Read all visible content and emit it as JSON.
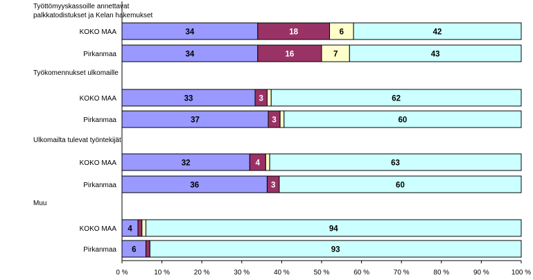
{
  "chart_data": {
    "type": "bar",
    "orientation": "horizontal",
    "stacked": "percent",
    "xlim": [
      0,
      100
    ],
    "x_ticks": [
      "0 %",
      "10 %",
      "20 %",
      "30 %",
      "40 %",
      "50 %",
      "60 %",
      "70 %",
      "80 %",
      "90 %",
      "100 %"
    ],
    "legend": "none",
    "grid": false,
    "colors": [
      "#9999ff",
      "#993366",
      "#ffffcc",
      "#ccffff"
    ],
    "label_colors": [
      "#000000",
      "#ffffff",
      "#000000",
      "#000000"
    ],
    "groups": [
      {
        "title": "Työttömyyskassoille annettavat\npalkkatodistukset ja Kelan hakemukset",
        "rows": [
          {
            "label": "KOKO MAA",
            "values": [
              34,
              18,
              6,
              42
            ],
            "value_labels": [
              "34",
              "18",
              "6",
              "42"
            ]
          },
          {
            "label": "Pirkanmaa",
            "values": [
              34,
              16,
              7,
              43
            ],
            "value_labels": [
              "34",
              "16",
              "7",
              "43"
            ]
          }
        ]
      },
      {
        "title": "Työkomennukset ulkomaille",
        "rows": [
          {
            "label": "KOKO MAA",
            "values": [
              33,
              3,
              1,
              62
            ],
            "value_labels": [
              "33",
              "3",
              "",
              "62"
            ]
          },
          {
            "label": "Pirkanmaa",
            "values": [
              37,
              3,
              1,
              60
            ],
            "value_labels": [
              "37",
              "3",
              "",
              "60"
            ]
          }
        ]
      },
      {
        "title": "Ulkomailta tulevat työntekijät",
        "rows": [
          {
            "label": "KOKO MAA",
            "values": [
              32,
              4,
              1,
              63
            ],
            "value_labels": [
              "32",
              "4",
              "",
              "63"
            ]
          },
          {
            "label": "Pirkanmaa",
            "values": [
              36,
              3,
              0,
              60
            ],
            "value_labels": [
              "36",
              "3",
              "0",
              "60"
            ]
          }
        ]
      },
      {
        "title": "Muu",
        "rows": [
          {
            "label": "KOKO MAA",
            "values": [
              4,
              1,
              1,
              94
            ],
            "value_labels": [
              "4",
              "1",
              "",
              "94"
            ]
          },
          {
            "label": "Pirkanmaa",
            "values": [
              6,
              1,
              0,
              93
            ],
            "value_labels": [
              "6",
              "",
              "0",
              "93"
            ]
          }
        ]
      }
    ]
  }
}
